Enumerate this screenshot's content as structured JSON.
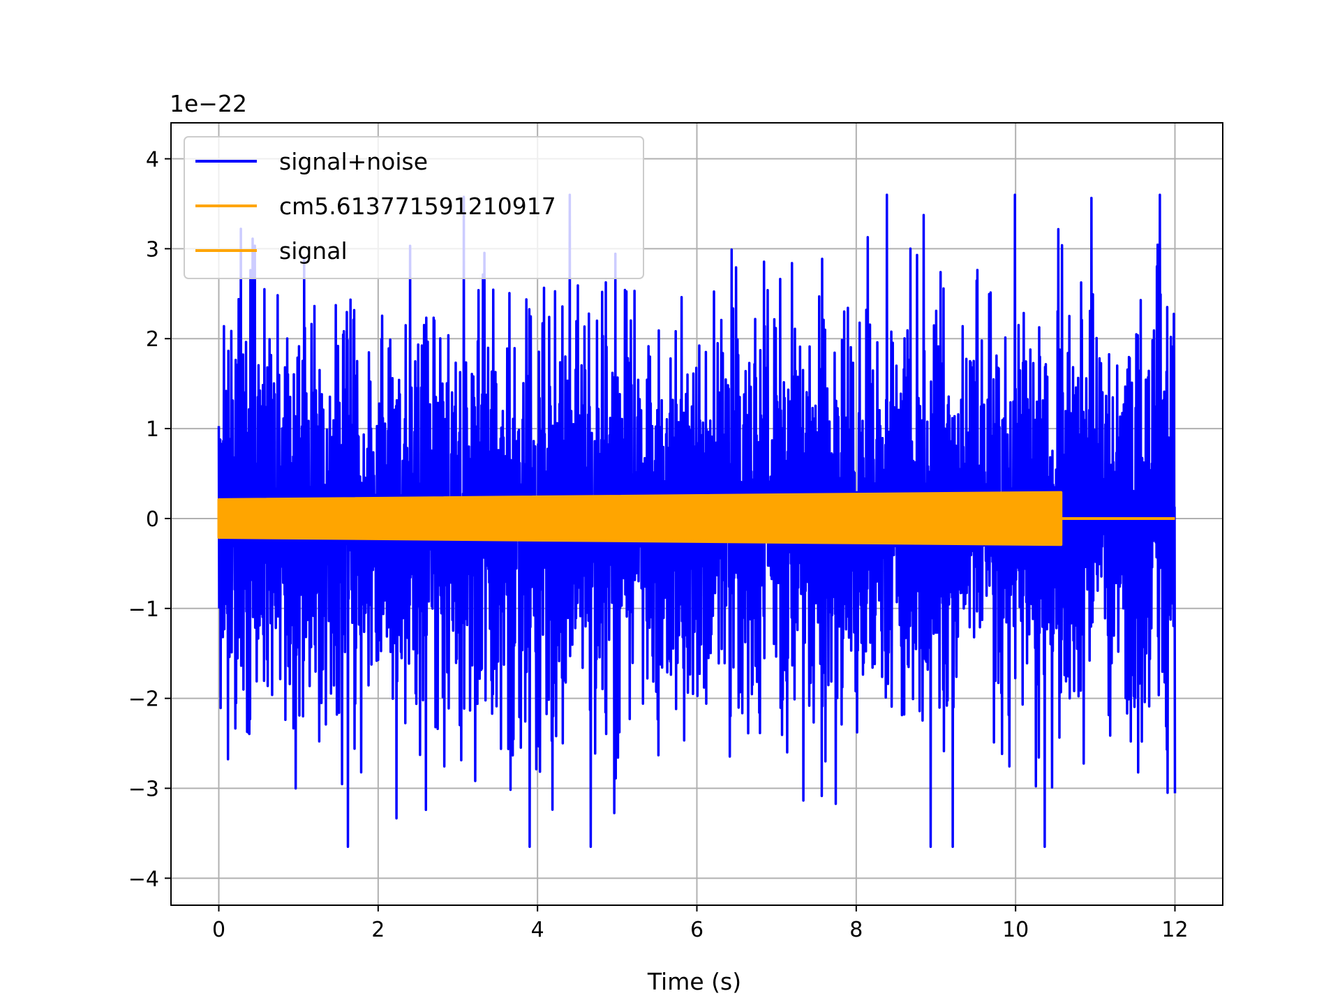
{
  "chart_data": {
    "type": "line",
    "title": "",
    "xlabel": "Time (s)",
    "ylabel": "",
    "y_offset_label": "1e−22",
    "xlim": [
      -0.6,
      12.6
    ],
    "ylim": [
      -4.3,
      4.4
    ],
    "x_ticks": [
      0,
      2,
      4,
      6,
      8,
      10,
      12
    ],
    "x_tick_labels": [
      "0",
      "2",
      "4",
      "6",
      "8",
      "10",
      "12"
    ],
    "y_ticks": [
      -4,
      -3,
      -2,
      -1,
      0,
      1,
      2,
      3,
      4
    ],
    "y_tick_labels": [
      "−4",
      "−3",
      "−2",
      "−1",
      "0",
      "1",
      "2",
      "3",
      "4"
    ],
    "grid": true,
    "legend_position": "upper-left",
    "series": [
      {
        "name": "signal+noise",
        "color": "#0000ff",
        "x_range": [
          0,
          12
        ],
        "amplitude_typical": 1.6,
        "amplitude_peak_max": 3.6,
        "amplitude_peak_min": -3.65
      },
      {
        "name": "cm5.613771591210917",
        "color": "#ffa500",
        "x_range": [
          0,
          12
        ],
        "values": [
          0,
          0
        ]
      },
      {
        "name": "signal",
        "color": "#ffa500",
        "x_range": [
          0,
          10.57
        ],
        "envelope": {
          "x": [
            0,
            10.57
          ],
          "amplitude": [
            0.21,
            0.29
          ]
        },
        "after_end_value": 0
      }
    ]
  }
}
